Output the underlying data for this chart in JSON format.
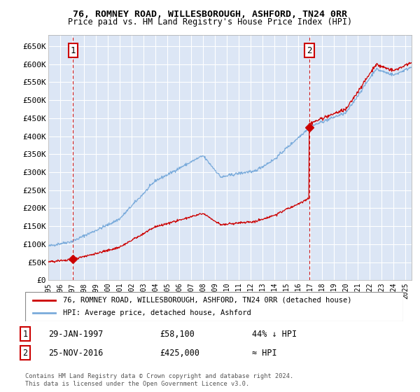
{
  "title1": "76, ROMNEY ROAD, WILLESBOROUGH, ASHFORD, TN24 0RR",
  "title2": "Price paid vs. HM Land Registry's House Price Index (HPI)",
  "ylabel_ticks": [
    "£0",
    "£50K",
    "£100K",
    "£150K",
    "£200K",
    "£250K",
    "£300K",
    "£350K",
    "£400K",
    "£450K",
    "£500K",
    "£550K",
    "£600K",
    "£650K"
  ],
  "ylim": [
    0,
    680000
  ],
  "xlim_start": 1995.0,
  "xlim_end": 2025.5,
  "purchase1_x": 1997.08,
  "purchase1_y": 58100,
  "purchase2_x": 2016.9,
  "purchase2_y": 425000,
  "hpi_color": "#7aabdb",
  "price_color": "#cc0000",
  "bg_color": "#dce6f5",
  "grid_color": "#ffffff",
  "legend_label1": "76, ROMNEY ROAD, WILLESBOROUGH, ASHFORD, TN24 0RR (detached house)",
  "legend_label2": "HPI: Average price, detached house, Ashford",
  "note1_label": "1",
  "note1_date": "29-JAN-1997",
  "note1_price": "£58,100",
  "note1_hpi": "44% ↓ HPI",
  "note2_label": "2",
  "note2_date": "25-NOV-2016",
  "note2_price": "£425,000",
  "note2_hpi": "≈ HPI",
  "footnote": "Contains HM Land Registry data © Crown copyright and database right 2024.\nThis data is licensed under the Open Government Licence v3.0."
}
